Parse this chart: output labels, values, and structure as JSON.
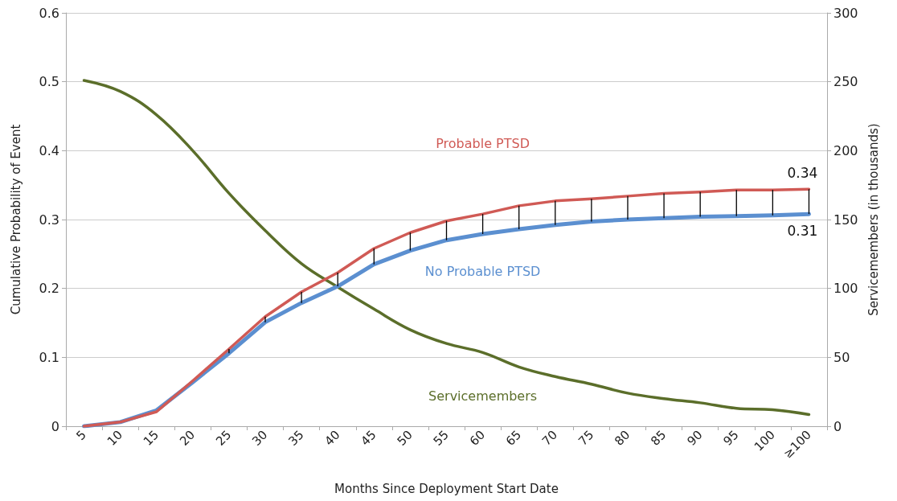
{
  "chart_data": {
    "type": "line",
    "xlabel": "Months Since Deployment Start Date",
    "ylabel": "Cumulative Probability of Event",
    "y2label": "Servicemembers (in thousands)",
    "categories": [
      "5",
      "10",
      "15",
      "20",
      "25",
      "30",
      "35",
      "40",
      "45",
      "50",
      "55",
      "60",
      "65",
      "70",
      "75",
      "80",
      "85",
      "90",
      "95",
      "100",
      "≥100"
    ],
    "series": [
      {
        "name": "Probable PTSD",
        "color": "#d05a55",
        "values": [
          0.0,
          0.006,
          0.021,
          0.066,
          0.112,
          0.159,
          0.195,
          0.223,
          0.258,
          0.281,
          0.298,
          0.308,
          0.32,
          0.327,
          0.33,
          0.334,
          0.338,
          0.34,
          0.343,
          0.343,
          0.344
        ],
        "errors": [
          null,
          null,
          null,
          null,
          [
            0.106,
            0.112
          ],
          [
            0.151,
            0.159
          ],
          [
            0.179,
            0.195
          ],
          [
            0.203,
            0.223
          ],
          [
            0.235,
            0.258
          ],
          [
            0.255,
            0.281
          ],
          [
            0.27,
            0.298
          ],
          [
            0.279,
            0.308
          ],
          [
            0.286,
            0.32
          ],
          [
            0.292,
            0.327
          ],
          [
            0.297,
            0.33
          ],
          [
            0.3,
            0.334
          ],
          [
            0.302,
            0.338
          ],
          [
            0.304,
            0.34
          ],
          [
            0.305,
            0.343
          ],
          [
            0.306,
            0.343
          ],
          [
            0.308,
            0.344
          ]
        ],
        "value_labels": [
          null,
          null,
          null,
          null,
          null,
          null,
          null,
          null,
          null,
          null,
          null,
          null,
          null,
          null,
          null,
          null,
          null,
          null,
          null,
          null,
          "0.34"
        ]
      },
      {
        "name": "No Probable PTSD",
        "color": "#5b8fd0",
        "values": [
          0.0,
          0.006,
          0.023,
          0.064,
          0.106,
          0.151,
          0.179,
          0.203,
          0.235,
          0.255,
          0.27,
          0.279,
          0.286,
          0.292,
          0.297,
          0.3,
          0.302,
          0.304,
          0.305,
          0.306,
          0.308
        ],
        "value_labels": [
          null,
          null,
          null,
          null,
          null,
          null,
          null,
          null,
          null,
          null,
          null,
          null,
          null,
          null,
          null,
          null,
          null,
          null,
          null,
          null,
          "0.31"
        ]
      },
      {
        "name": "Servicemembers",
        "color": "#5b6e2a",
        "axis": "y2",
        "values": [
          251,
          243,
          226,
          200,
          169,
          142,
          118,
          101,
          85,
          70,
          60,
          53.5,
          43,
          36,
          30.5,
          24,
          20,
          17,
          13,
          12,
          8.5
        ]
      }
    ],
    "ylim": [
      0,
      0.6
    ],
    "yticks": [
      0,
      0.1,
      0.2,
      0.3,
      0.4,
      0.5,
      0.6
    ],
    "y2lim": [
      0,
      300
    ],
    "y2ticks": [
      0,
      50,
      100,
      150,
      200,
      250,
      300
    ],
    "grid": "y",
    "legend": false,
    "marker": "none",
    "line_style": "solid"
  }
}
